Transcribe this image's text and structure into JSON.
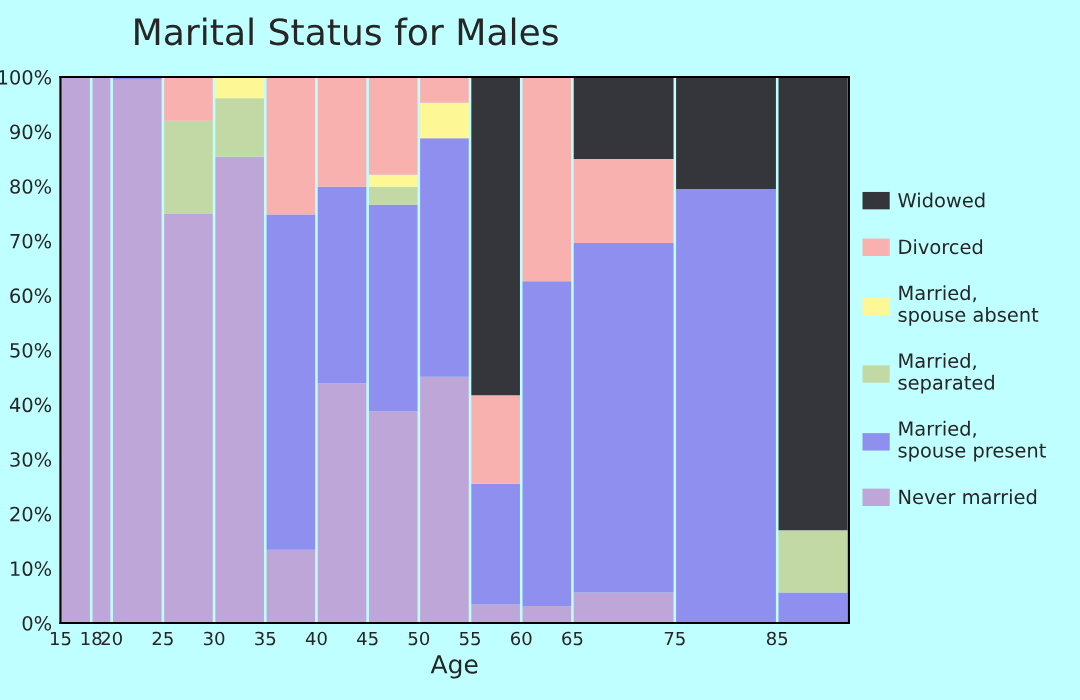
{
  "chart_data": {
    "type": "bar",
    "stacked": true,
    "title": "Marital Status for Males",
    "xlabel": "Age",
    "x": [
      16.5,
      19,
      22.5,
      27.5,
      32.5,
      37.5,
      42.5,
      47.5,
      52.5,
      57.5,
      62.5,
      70,
      80,
      88.5
    ],
    "xlim": [
      15,
      92
    ],
    "xticks": [
      15,
      18,
      20,
      25,
      30,
      35,
      40,
      45,
      50,
      55,
      60,
      65,
      75,
      85
    ],
    "ylim": [
      0,
      100
    ],
    "yticks": [
      {
        "value": 0,
        "label": "0%"
      },
      {
        "value": 10,
        "label": "10%"
      },
      {
        "value": 20,
        "label": "20%"
      },
      {
        "value": 30,
        "label": "30%"
      },
      {
        "value": 40,
        "label": "40%"
      },
      {
        "value": 50,
        "label": "50%"
      },
      {
        "value": 60,
        "label": "60%"
      },
      {
        "value": 70,
        "label": "70%"
      },
      {
        "value": 80,
        "label": "80%"
      },
      {
        "value": 90,
        "label": "90%"
      },
      {
        "value": 100,
        "label": "100%"
      }
    ],
    "legend": "right",
    "series": [
      {
        "name": "Never married",
        "color": "#bea7d8",
        "values": [
          100,
          100,
          99.5,
          75,
          85.4,
          13.4,
          43.9,
          38.8,
          45.1,
          3.4,
          3.1,
          5.6,
          0,
          0
        ]
      },
      {
        "name": "Married, spouse present",
        "color": "#8f8ff0",
        "values": [
          0,
          0,
          0.5,
          0,
          0,
          61.4,
          36,
          37.8,
          43.7,
          22.1,
          59.5,
          64,
          79.5,
          5.6
        ]
      },
      {
        "name": "Married, separated",
        "color": "#c3d9a5",
        "values": [
          0,
          0,
          0,
          17,
          10.7,
          0,
          0,
          3.3,
          0,
          0,
          0,
          0,
          0,
          11.4
        ]
      },
      {
        "name": "Married, spouse absent",
        "color": "#fdf895",
        "values": [
          0,
          0,
          0,
          0,
          3.9,
          0,
          0,
          2.2,
          6.5,
          0,
          0,
          0,
          0,
          0
        ]
      },
      {
        "name": "Divorced",
        "color": "#f9b1b0",
        "values": [
          0,
          0,
          0,
          8,
          0,
          25.2,
          20.1,
          17.9,
          4.7,
          16.2,
          37.4,
          15.4,
          0,
          0
        ]
      },
      {
        "name": "Widowed",
        "color": "#35363b",
        "values": [
          0,
          0,
          0,
          0,
          0,
          0,
          0,
          0,
          0,
          58.3,
          0,
          15,
          20.5,
          83
        ]
      }
    ]
  }
}
